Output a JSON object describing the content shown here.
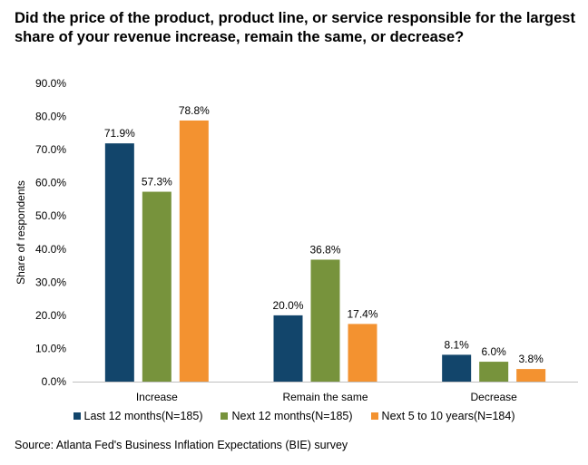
{
  "title": "Did the price of the product, product line, or service responsible for the largest share of your revenue increase, remain the same, or decrease?",
  "source": "Source: Atlanta Fed's Business Inflation Expectations (BIE) survey",
  "colors": {
    "series0": "#12456b",
    "series1": "#77933c",
    "series2": "#f39230"
  },
  "chart_data": {
    "type": "bar",
    "categories": [
      "Increase",
      "Remain the same",
      "Decrease"
    ],
    "series": [
      {
        "name": "Last 12 months(N=185)",
        "values": [
          71.9,
          20.0,
          8.1
        ],
        "labels": [
          "71.9%",
          "20.0%",
          "8.1%"
        ]
      },
      {
        "name": "Next 12 months(N=185)",
        "values": [
          57.3,
          36.8,
          6.0
        ],
        "labels": [
          "57.3%",
          "36.8%",
          "6.0%"
        ]
      },
      {
        "name": "Next 5 to 10 years(N=184)",
        "values": [
          78.8,
          17.4,
          3.8
        ],
        "labels": [
          "78.8%",
          "17.4%",
          "3.8%"
        ]
      }
    ],
    "ylabel": "Share of respondents",
    "xlabel": "",
    "ylim": [
      0,
      90
    ],
    "yticks": [
      "0.0%",
      "10.0%",
      "20.0%",
      "30.0%",
      "40.0%",
      "50.0%",
      "60.0%",
      "70.0%",
      "80.0%",
      "90.0%"
    ],
    "grid": false,
    "legend": "bottom"
  }
}
